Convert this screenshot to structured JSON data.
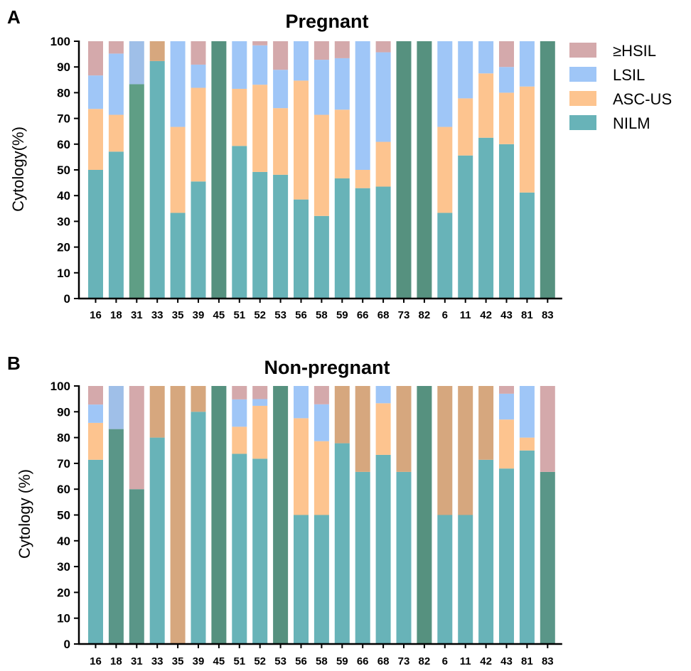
{
  "legend": [
    {
      "label": "≥HSIL",
      "color": "#d4a9ab"
    },
    {
      "label": "LSIL",
      "color": "#9fc6f7"
    },
    {
      "label": "ASC-US",
      "color": "#fdc48f"
    },
    {
      "label": "NILM",
      "color": "#68b3b8"
    }
  ],
  "colors": {
    "HSIL": "#d4a9ab",
    "HSIL_single": "#d4a9ab",
    "LSIL": "#9fc6f7",
    "LSIL_single": "#9fbfe8",
    "ASCUS": "#fdc48f",
    "ASCUS_single": "#d6a77e",
    "NILM": "#68b3b8",
    "NILM_mixed_A": "#5f9e85",
    "NILM_mixed_B": "#5a9688",
    "NILM_single": "#56917f"
  },
  "chart_data": [
    {
      "type": "bar",
      "stacked": true,
      "panel": "A",
      "title": "Pregnant",
      "xlabel": "",
      "ylabel": "Cytology(%)",
      "ylim": [
        0,
        100
      ],
      "yticks": [
        0,
        10,
        20,
        30,
        40,
        50,
        60,
        70,
        80,
        90,
        100
      ],
      "categories": [
        "16",
        "18",
        "31",
        "33",
        "35",
        "39",
        "45",
        "51",
        "52",
        "53",
        "56",
        "58",
        "59",
        "66",
        "68",
        "73",
        "82",
        "6",
        "11",
        "42",
        "43",
        "81",
        "83"
      ],
      "series": [
        {
          "name": "NILM",
          "values": [
            50,
            57.1,
            83.3,
            92.3,
            33.3,
            45.5,
            100,
            59.3,
            49.2,
            48.1,
            38.5,
            32.1,
            46.7,
            42.9,
            43.5,
            100,
            100,
            33.3,
            55.6,
            62.5,
            60,
            41.2,
            100
          ]
        },
        {
          "name": "ASC-US",
          "values": [
            23.7,
            14.3,
            0,
            7.7,
            33.4,
            36.4,
            0,
            22.2,
            33.9,
            25.9,
            46.2,
            39.3,
            26.7,
            7.1,
            17.4,
            0,
            0,
            33.4,
            22.2,
            25,
            20,
            41.2,
            0
          ]
        },
        {
          "name": "LSIL",
          "values": [
            13,
            23.8,
            16.7,
            0,
            33.3,
            9,
            0,
            18.5,
            15.3,
            14.9,
            15.3,
            21.4,
            20,
            50,
            34.8,
            0,
            0,
            33.3,
            22.2,
            12.5,
            10,
            17.6,
            0
          ]
        },
        {
          "name": "≥HSIL",
          "values": [
            13.3,
            4.8,
            0,
            0,
            0,
            9.1,
            0,
            0,
            1.6,
            11.1,
            0,
            7.2,
            6.6,
            0,
            4.3,
            0,
            0,
            0,
            0,
            0,
            10,
            0,
            0
          ]
        }
      ]
    },
    {
      "type": "bar",
      "stacked": true,
      "panel": "B",
      "title": "Non-pregnant",
      "xlabel": "",
      "ylabel": "Cytology (%)",
      "ylim": [
        0,
        100
      ],
      "yticks": [
        0,
        10,
        20,
        30,
        40,
        50,
        60,
        70,
        80,
        90,
        100
      ],
      "categories": [
        "16",
        "18",
        "31",
        "33",
        "35",
        "39",
        "45",
        "51",
        "52",
        "53",
        "56",
        "58",
        "59",
        "66",
        "68",
        "73",
        "82",
        "6",
        "11",
        "42",
        "43",
        "81",
        "83"
      ],
      "series": [
        {
          "name": "NILM",
          "values": [
            71.4,
            83.3,
            60,
            80,
            0,
            90,
            100,
            73.7,
            71.8,
            100,
            50,
            50,
            77.8,
            66.7,
            73.3,
            66.7,
            100,
            50,
            50,
            71.4,
            68,
            75,
            66.7
          ]
        },
        {
          "name": "ASC-US",
          "values": [
            14.3,
            0,
            0,
            20,
            100,
            10,
            0,
            10.5,
            20.5,
            0,
            37.5,
            28.6,
            22.2,
            33.3,
            20,
            33.3,
            0,
            50,
            50,
            28.6,
            19,
            5,
            0
          ]
        },
        {
          "name": "LSIL",
          "values": [
            7.1,
            16.7,
            0,
            0,
            0,
            0,
            0,
            10.6,
            2.6,
            0,
            12.5,
            14.3,
            0,
            0,
            6.7,
            0,
            0,
            0,
            0,
            0,
            10,
            20,
            0
          ]
        },
        {
          "name": "≥HSIL",
          "values": [
            7.2,
            0,
            40,
            0,
            0,
            0,
            0,
            5.2,
            5.1,
            0,
            0,
            7.1,
            0,
            0,
            0,
            0,
            0,
            0,
            0,
            0,
            3,
            0,
            33.3
          ]
        }
      ]
    }
  ]
}
